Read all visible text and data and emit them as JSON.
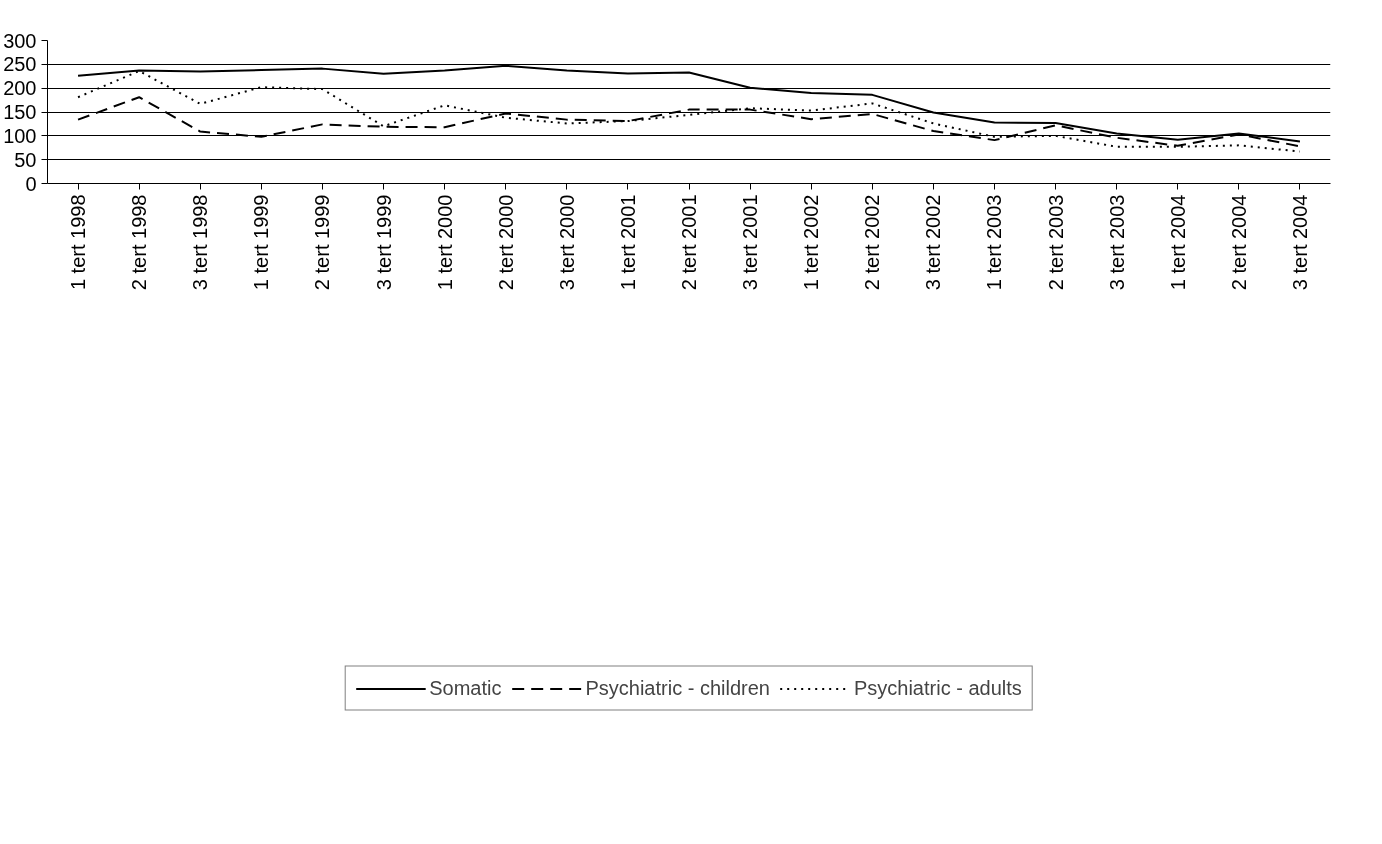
{
  "chart_data": {
    "type": "line",
    "categories": [
      "1 tert 1998",
      "2 tert 1998",
      "3 tert 1998",
      "1 tert 1999",
      "2 tert 1999",
      "3 tert 1999",
      "1 tert 2000",
      "2 tert 2000",
      "3 tert 2000",
      "1 tert 2001",
      "2 tert 2001",
      "3 tert 2001",
      "1 tert 2002",
      "2 tert 2002",
      "3 tert 2002",
      "1 tert 2003",
      "2 tert 2003",
      "3 tert 2003",
      "1 tert 2004",
      "2 tert 2004",
      "3 tert 2004"
    ],
    "series": [
      {
        "name": "Somatic",
        "color": "#000000",
        "line_style": "solid",
        "values": [
          226,
          237,
          235,
          238,
          241,
          230,
          237,
          247,
          237,
          231,
          233,
          201,
          190,
          186,
          149,
          128,
          127,
          105,
          92,
          105,
          88
        ]
      },
      {
        "name": "Psychiatric - children",
        "color": "#000000",
        "line_style": "dashed",
        "values": [
          134,
          181,
          109,
          98,
          124,
          119,
          118,
          147,
          134,
          131,
          155,
          155,
          135,
          146,
          110,
          91,
          122,
          96,
          79,
          103,
          78
        ]
      },
      {
        "name": "Psychiatric - adults",
        "color": "#000000",
        "line_style": "dotted",
        "values": [
          181,
          236,
          167,
          202,
          198,
          120,
          164,
          138,
          126,
          131,
          144,
          158,
          153,
          168,
          126,
          98,
          100,
          77,
          77,
          80,
          67
        ]
      }
    ],
    "ylim": [
      0,
      300
    ],
    "yticks": [
      0,
      50,
      100,
      150,
      200,
      250,
      300
    ],
    "grid": "y",
    "legend": "bottom",
    "marker": "none"
  }
}
